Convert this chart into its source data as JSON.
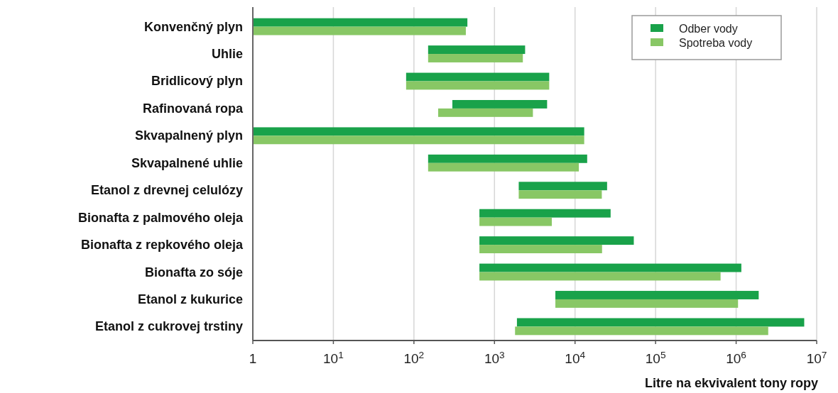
{
  "chart_data": {
    "type": "bar",
    "orientation": "horizontal",
    "log": "x",
    "xlabel": "Litre na ekvivalent tony ropy",
    "categories": [
      "Konvenčný plyn",
      "Uhlie",
      "Bridlicový plyn",
      "Rafinovaná ropa",
      "Skvapalnený plyn",
      "Skvapalnené uhlie",
      "Etanol z drevnej celulózy",
      "Bionafta z palmového oleja",
      "Bionafta z repkového oleja",
      "Bionafta zo sóje",
      "Etanol z kukurice",
      "Etanol z cukrovej trstiny"
    ],
    "series": [
      {
        "name": "Odber vody",
        "color": "#19a24a",
        "base": [
          1,
          150,
          80,
          300,
          1,
          150,
          2000,
          650,
          650,
          650,
          5700,
          1900
        ],
        "values": [
          460,
          2250,
          4700,
          4200,
          13000,
          14000,
          23000,
          27000,
          53000,
          1160000,
          1900000,
          7000000
        ]
      },
      {
        "name": "Spotreba vody",
        "color": "#88c765",
        "base": [
          1,
          150,
          80,
          200,
          1,
          150,
          2000,
          650,
          650,
          650,
          5700,
          1800
        ],
        "values": [
          440,
          2100,
          4700,
          2800,
          13000,
          11000,
          19500,
          4500,
          21000,
          640000,
          1050000,
          2500000
        ]
      }
    ],
    "xlim": [
      1,
      10000000
    ],
    "xticks": [
      1,
      {
        "value": 10,
        "label": "10$^{1}$"
      },
      {
        "value": 100,
        "label": "10$^{2}$"
      },
      {
        "value": 1000,
        "label": "10$^{3}$"
      },
      {
        "value": 10000,
        "label": "10$^{4}$"
      },
      {
        "value": 100000,
        "label": "10$^{5}$"
      },
      {
        "value": 1000000,
        "label": "10$^{6}$"
      },
      {
        "value": 10000000,
        "label": "10$^{7}$"
      }
    ],
    "grid": "x",
    "legend": "top right"
  }
}
